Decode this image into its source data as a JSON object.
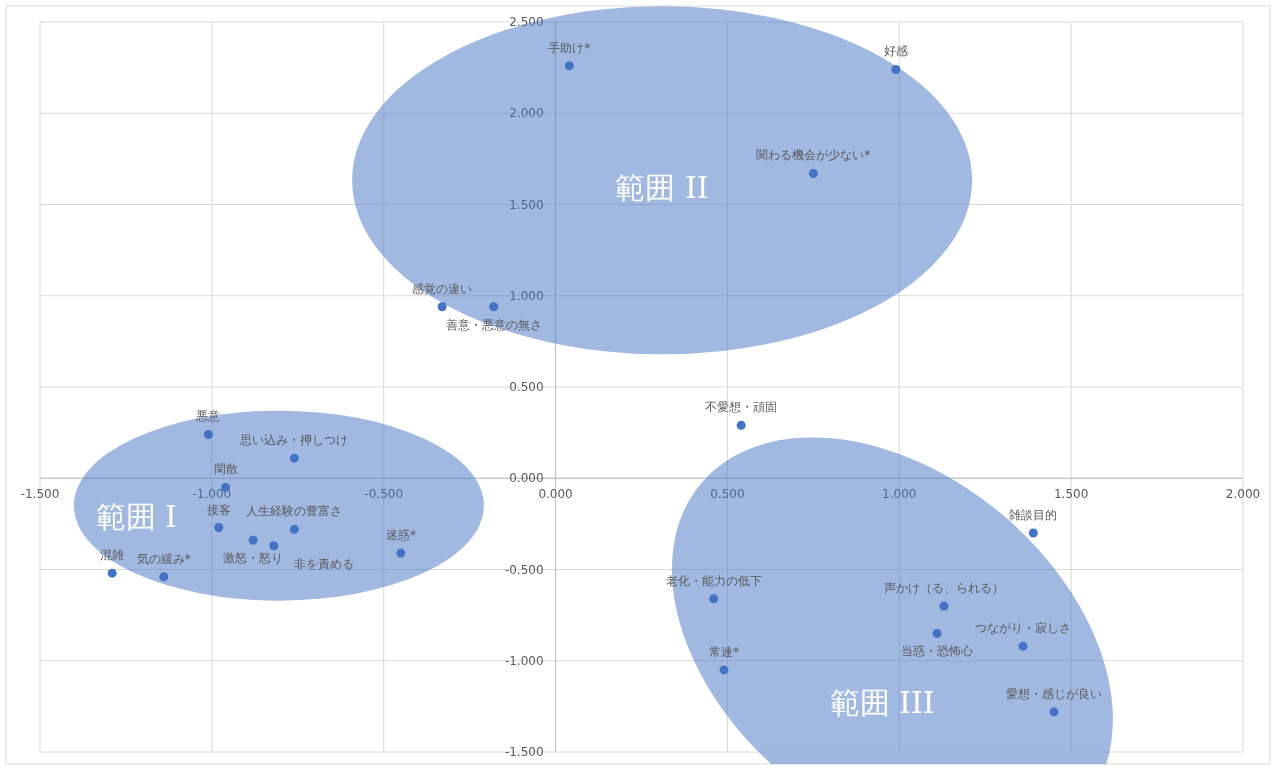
{
  "chart_data": {
    "type": "scatter",
    "marker": "circle",
    "grid": true,
    "xlim": [
      -1.5,
      2.0
    ],
    "xticks": [
      {
        "value": -1.5,
        "label": "-1.500"
      },
      {
        "value": -1.0,
        "label": "-1.000"
      },
      {
        "value": -0.5,
        "label": "-0.500"
      },
      {
        "value": 0,
        "label": "0.000"
      },
      {
        "value": 0.5,
        "label": "0.500"
      },
      {
        "value": 1.0,
        "label": "1.000"
      },
      {
        "value": 1.5,
        "label": "1.500"
      },
      {
        "value": 2.0,
        "label": "2.000"
      }
    ],
    "ylim": [
      -1.5,
      2.5
    ],
    "yticks": [
      {
        "value": -1.5,
        "label": "-1.500"
      },
      {
        "value": -1.0,
        "label": "-1.000"
      },
      {
        "value": -0.5,
        "label": "-0.500"
      },
      {
        "value": 0,
        "label": "0.000"
      },
      {
        "value": 0.5,
        "label": "0.500"
      },
      {
        "value": 1.0,
        "label": "1.000"
      },
      {
        "value": 1.5,
        "label": "1.500"
      },
      {
        "value": 2.0,
        "label": "2.000"
      },
      {
        "value": 2.5,
        "label": "2.500"
      }
    ],
    "annotations": [
      "範囲 I",
      "範囲 II",
      "範囲 III"
    ],
    "series": [
      {
        "color": "#4472c4",
        "x": [
          0.04,
          0.99,
          0.75,
          -0.33,
          -0.18,
          0.54,
          -1.01,
          -0.76,
          -0.96,
          -0.98,
          -0.88,
          -0.82,
          -0.76,
          -0.45,
          -1.29,
          -1.14,
          1.39,
          0.46,
          1.13,
          1.11,
          1.36,
          0.49,
          1.45
        ],
        "values": [
          2.26,
          2.24,
          1.67,
          0.94,
          0.94,
          0.29,
          0.24,
          0.11,
          -0.05,
          -0.27,
          -0.34,
          -0.37,
          -0.28,
          -0.41,
          -0.52,
          -0.54,
          -0.3,
          -0.66,
          -0.7,
          -0.85,
          -0.92,
          -1.05,
          -1.28
        ],
        "value_labels": [
          "手助け*",
          "好感",
          "関わる機会が少ない*",
          "感覚の違い",
          "善意・悪意の無さ",
          "不愛想・頑固",
          "悪意",
          "思い込み・押しつけ",
          "閑散",
          "接客",
          "激怒・怒り",
          "非を責める",
          "人生経験の豊富さ",
          "迷惑*",
          "混雑",
          "気の緩み*",
          "雑談目的",
          "老化・能力の低下",
          "声かけ（る、られる）",
          "当惑・恐怖心",
          "つながり・寂しさ",
          "常連*",
          "愛想・感じが良い"
        ]
      }
    ]
  }
}
